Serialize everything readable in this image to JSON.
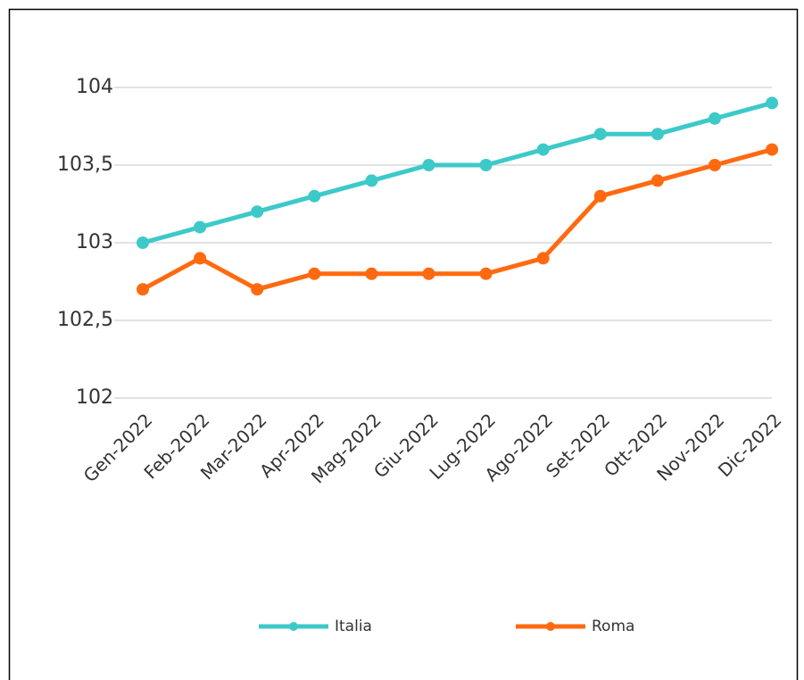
{
  "chart_data": {
    "type": "line",
    "categories": [
      "Gen-2022",
      "Feb-2022",
      "Mar-2022",
      "Apr-2022",
      "Mag-2022",
      "Giu-2022",
      "Lug-2022",
      "Ago-2022",
      "Set-2022",
      "Ott-2022",
      "Nov-2022",
      "Dic-2022"
    ],
    "series": [
      {
        "name": "Italia",
        "color": "#3ec9c9",
        "values": [
          103,
          103.1,
          103.2,
          103.3,
          103.4,
          103.5,
          103.5,
          103.6,
          103.7,
          103.7,
          103.8,
          103.9
        ]
      },
      {
        "name": "Roma",
        "color": "#ff6a10",
        "values": [
          102.7,
          102.9,
          102.7,
          102.8,
          102.8,
          102.8,
          102.8,
          102.9,
          103.3,
          103.4,
          103.5,
          103.6
        ]
      }
    ],
    "ylim": [
      102,
      104
    ],
    "yticks": [
      102,
      {
        "value": 102.5,
        "label": "102,5"
      },
      103,
      {
        "value": 103.5,
        "label": "103,5"
      },
      104
    ],
    "grid": true,
    "legend": "bottom"
  }
}
